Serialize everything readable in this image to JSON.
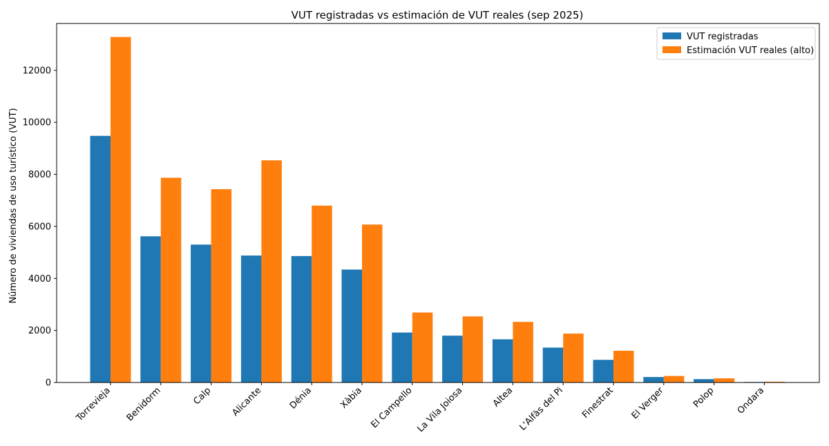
{
  "chart_data": {
    "type": "bar",
    "title": "VUT registradas vs estimación de VUT reales (sep 2025)",
    "xlabel": "",
    "ylabel": "Número de viviendas de uso turístico (VUT)",
    "ylim": [
      0,
      13800
    ],
    "yticks": [
      0,
      2000,
      4000,
      6000,
      8000,
      10000,
      12000
    ],
    "grid": false,
    "legend_position": "top-right",
    "categories": [
      "Torrevieja",
      "Benidorm",
      "Calp",
      "Alicante",
      "Dénia",
      "Xàbia",
      "El Campello",
      "La Vila Joiosa",
      "Altea",
      "L'Alfàs del Pi",
      "Finestrat",
      "El Verger",
      "Polop",
      "Ondara"
    ],
    "series": [
      {
        "name": "VUT registradas",
        "color": "#1f77b4",
        "values": [
          9480,
          5620,
          5300,
          4880,
          4860,
          4340,
          1920,
          1800,
          1660,
          1340,
          870,
          210,
          130,
          20
        ]
      },
      {
        "name": "Estimación VUT reales (alto)",
        "color": "#ff7f0e",
        "values": [
          13280,
          7870,
          7430,
          8540,
          6800,
          6070,
          2690,
          2540,
          2330,
          1880,
          1220,
          250,
          160,
          30
        ]
      }
    ]
  }
}
